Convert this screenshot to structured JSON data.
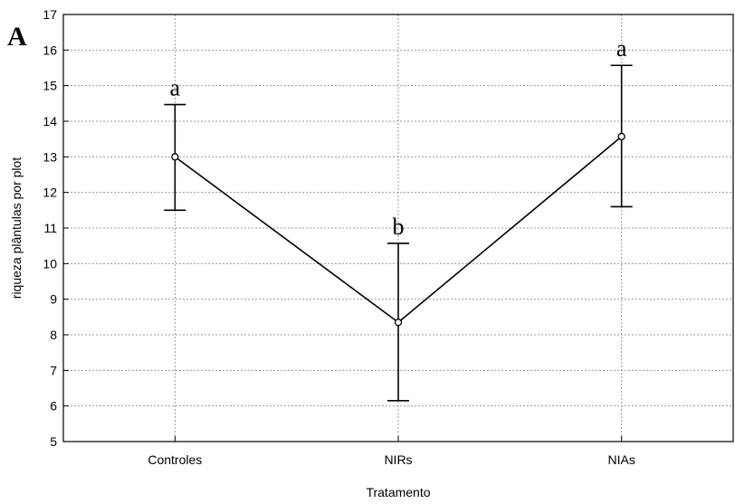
{
  "panel_label": "A",
  "chart_data": {
    "type": "line",
    "title": "",
    "xlabel": "Tratamento",
    "ylabel": "riqueza plântulas por plot",
    "categories": [
      "Controles",
      "NIRs",
      "NIAs"
    ],
    "series": [
      {
        "values": [
          13.0,
          8.35,
          13.57
        ],
        "error_lower": [
          11.5,
          6.15,
          11.6
        ],
        "error_upper": [
          14.47,
          10.57,
          15.57
        ],
        "group_letters": [
          "a",
          "b",
          "a"
        ]
      }
    ],
    "ylim": [
      5,
      17
    ],
    "yticks": [
      5,
      6,
      7,
      8,
      9,
      10,
      11,
      12,
      13,
      14,
      15,
      16,
      17
    ],
    "grid": true,
    "legend": "none"
  }
}
